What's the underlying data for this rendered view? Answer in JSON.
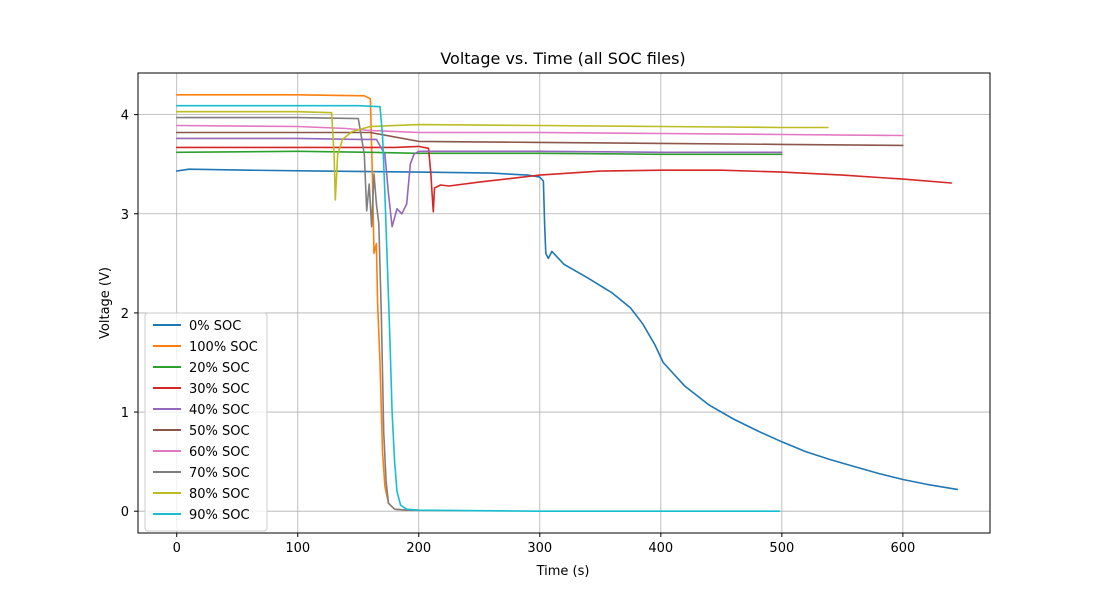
{
  "chart_data": {
    "type": "line",
    "title": "Voltage vs. Time (all SOC files)",
    "xlabel": "Time (s)",
    "ylabel": "Voltage (V)",
    "xlim": [
      -32,
      672
    ],
    "ylim": [
      -0.22,
      4.42
    ],
    "xticks": [
      0,
      100,
      200,
      300,
      400,
      500,
      600
    ],
    "yticks": [
      0,
      1,
      2,
      3,
      4
    ],
    "grid": true,
    "legend_position": "lower-left",
    "series": [
      {
        "name": "0% SOC",
        "color": "#1f77b4",
        "points": [
          [
            0,
            3.43
          ],
          [
            10,
            3.45
          ],
          [
            60,
            3.44
          ],
          [
            120,
            3.43
          ],
          [
            200,
            3.42
          ],
          [
            260,
            3.41
          ],
          [
            290,
            3.39
          ],
          [
            300,
            3.37
          ],
          [
            303,
            3.33
          ],
          [
            304,
            2.9
          ],
          [
            305,
            2.6
          ],
          [
            307,
            2.55
          ],
          [
            310,
            2.62
          ],
          [
            320,
            2.49
          ],
          [
            340,
            2.35
          ],
          [
            360,
            2.2
          ],
          [
            375,
            2.05
          ],
          [
            385,
            1.89
          ],
          [
            395,
            1.68
          ],
          [
            402,
            1.5
          ],
          [
            420,
            1.26
          ],
          [
            440,
            1.07
          ],
          [
            460,
            0.93
          ],
          [
            480,
            0.81
          ],
          [
            500,
            0.7
          ],
          [
            520,
            0.6
          ],
          [
            540,
            0.52
          ],
          [
            560,
            0.45
          ],
          [
            580,
            0.38
          ],
          [
            600,
            0.32
          ],
          [
            620,
            0.27
          ],
          [
            645,
            0.22
          ]
        ]
      },
      {
        "name": "100% SOC",
        "color": "#ff7f0e",
        "points": [
          [
            0,
            4.2
          ],
          [
            100,
            4.2
          ],
          [
            155,
            4.19
          ],
          [
            160,
            4.16
          ],
          [
            162,
            3.2
          ],
          [
            163,
            2.6
          ],
          [
            165,
            2.7
          ],
          [
            166,
            2.1
          ],
          [
            168,
            1.5
          ],
          [
            170,
            0.6
          ],
          [
            172,
            0.25
          ],
          [
            175,
            0.08
          ],
          [
            180,
            0.02
          ],
          [
            190,
            0.01
          ],
          [
            200,
            0.01
          ]
        ]
      },
      {
        "name": "20% SOC",
        "color": "#2ca02c",
        "points": [
          [
            0,
            3.62
          ],
          [
            100,
            3.63
          ],
          [
            160,
            3.62
          ],
          [
            200,
            3.61
          ],
          [
            300,
            3.61
          ],
          [
            400,
            3.6
          ],
          [
            500,
            3.6
          ]
        ]
      },
      {
        "name": "30% SOC",
        "color": "#d62728",
        "points": [
          [
            0,
            3.67
          ],
          [
            100,
            3.67
          ],
          [
            180,
            3.67
          ],
          [
            200,
            3.68
          ],
          [
            208,
            3.66
          ],
          [
            210,
            3.4
          ],
          [
            211,
            3.2
          ],
          [
            212,
            3.02
          ],
          [
            213,
            3.26
          ],
          [
            218,
            3.29
          ],
          [
            225,
            3.28
          ],
          [
            250,
            3.32
          ],
          [
            300,
            3.39
          ],
          [
            350,
            3.43
          ],
          [
            400,
            3.44
          ],
          [
            450,
            3.44
          ],
          [
            500,
            3.42
          ],
          [
            550,
            3.39
          ],
          [
            600,
            3.35
          ],
          [
            640,
            3.31
          ]
        ]
      },
      {
        "name": "40% SOC",
        "color": "#9467bd",
        "points": [
          [
            0,
            3.76
          ],
          [
            100,
            3.76
          ],
          [
            150,
            3.75
          ],
          [
            165,
            3.75
          ],
          [
            172,
            3.6
          ],
          [
            175,
            3.2
          ],
          [
            178,
            2.87
          ],
          [
            182,
            3.05
          ],
          [
            186,
            3.0
          ],
          [
            190,
            3.1
          ],
          [
            193,
            3.5
          ],
          [
            196,
            3.6
          ],
          [
            200,
            3.63
          ],
          [
            300,
            3.63
          ],
          [
            400,
            3.62
          ],
          [
            500,
            3.62
          ]
        ]
      },
      {
        "name": "50% SOC",
        "color": "#8c564b",
        "points": [
          [
            0,
            3.82
          ],
          [
            100,
            3.82
          ],
          [
            160,
            3.82
          ],
          [
            200,
            3.73
          ],
          [
            300,
            3.72
          ],
          [
            400,
            3.71
          ],
          [
            500,
            3.7
          ],
          [
            600,
            3.69
          ]
        ]
      },
      {
        "name": "60% SOC",
        "color": "#e377c2",
        "points": [
          [
            0,
            3.89
          ],
          [
            100,
            3.88
          ],
          [
            140,
            3.86
          ],
          [
            160,
            3.84
          ],
          [
            200,
            3.82
          ],
          [
            300,
            3.82
          ],
          [
            400,
            3.81
          ],
          [
            500,
            3.8
          ],
          [
            600,
            3.79
          ]
        ]
      },
      {
        "name": "70% SOC",
        "color": "#7f7f7f",
        "points": [
          [
            0,
            3.97
          ],
          [
            100,
            3.97
          ],
          [
            150,
            3.96
          ],
          [
            155,
            3.6
          ],
          [
            157,
            3.03
          ],
          [
            159,
            3.3
          ],
          [
            161,
            2.87
          ],
          [
            163,
            3.4
          ],
          [
            165,
            3.1
          ],
          [
            167,
            2.9
          ],
          [
            169,
            2.0
          ],
          [
            171,
            0.8
          ],
          [
            173,
            0.3
          ],
          [
            175,
            0.08
          ],
          [
            180,
            0.02
          ],
          [
            190,
            0.01
          ],
          [
            200,
            0.01
          ]
        ]
      },
      {
        "name": "80% SOC",
        "color": "#bcbd22",
        "points": [
          [
            0,
            4.03
          ],
          [
            100,
            4.03
          ],
          [
            128,
            4.02
          ],
          [
            130,
            3.6
          ],
          [
            131,
            3.14
          ],
          [
            133,
            3.6
          ],
          [
            137,
            3.75
          ],
          [
            145,
            3.83
          ],
          [
            160,
            3.88
          ],
          [
            200,
            3.9
          ],
          [
            300,
            3.89
          ],
          [
            400,
            3.88
          ],
          [
            500,
            3.87
          ],
          [
            538,
            3.87
          ]
        ]
      },
      {
        "name": "90% SOC",
        "color": "#17becf",
        "points": [
          [
            0,
            4.09
          ],
          [
            100,
            4.09
          ],
          [
            150,
            4.09
          ],
          [
            168,
            4.08
          ],
          [
            170,
            3.8
          ],
          [
            172,
            3.2
          ],
          [
            174,
            2.5
          ],
          [
            176,
            1.8
          ],
          [
            178,
            1.0
          ],
          [
            180,
            0.5
          ],
          [
            182,
            0.2
          ],
          [
            185,
            0.06
          ],
          [
            190,
            0.02
          ],
          [
            200,
            0.01
          ],
          [
            300,
            0.0
          ],
          [
            400,
            0.0
          ],
          [
            498,
            0.0
          ]
        ]
      }
    ]
  }
}
